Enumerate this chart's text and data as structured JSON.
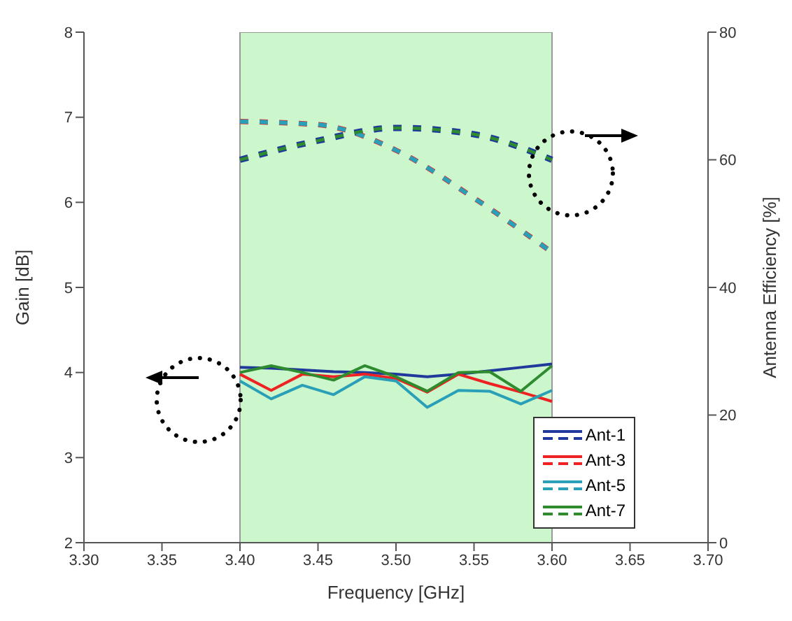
{
  "chart_data": {
    "type": "line",
    "xlabel": "Frequency [GHz]",
    "ylabel": "Gain [dB]",
    "y2label": "Antenna Efficiency [%]",
    "xlim": [
      3.3,
      3.7
    ],
    "xticks": [
      {
        "value": 3.3,
        "label": "3.30"
      },
      {
        "value": 3.35,
        "label": "3.35"
      },
      {
        "value": 3.4,
        "label": "3.40"
      },
      {
        "value": 3.45,
        "label": "3.45"
      },
      {
        "value": 3.5,
        "label": "3.50"
      },
      {
        "value": 3.55,
        "label": "3.55"
      },
      {
        "value": 3.6,
        "label": "3.60"
      },
      {
        "value": 3.65,
        "label": "3.65"
      },
      {
        "value": 3.7,
        "label": "3.70"
      }
    ],
    "ylim": [
      2,
      8
    ],
    "yticks": [
      2,
      3,
      4,
      5,
      6,
      7,
      8
    ],
    "y2lim": [
      0,
      80
    ],
    "y2ticks": [
      0,
      20,
      40,
      60,
      80
    ],
    "grid": false,
    "legend": "bottom right",
    "marker": "none",
    "bands": [
      {
        "axis": "x",
        "from": 3.4,
        "to": 3.6,
        "color": "#ccf7cc"
      }
    ],
    "series": [
      {
        "name": "Ant-1",
        "color": "#1f3a9a",
        "line_style": "solid",
        "x": [
          3.4,
          3.42,
          3.44,
          3.46,
          3.48,
          3.5,
          3.52,
          3.54,
          3.56,
          3.58,
          3.6
        ],
        "values": [
          4.06,
          4.05,
          4.03,
          4.01,
          4.0,
          3.98,
          3.95,
          3.98,
          4.02,
          4.06,
          4.1
        ]
      },
      {
        "name": "Ant-3",
        "color": "#ee2222",
        "line_style": "solid",
        "x": [
          3.4,
          3.42,
          3.44,
          3.46,
          3.48,
          3.5,
          3.52,
          3.54,
          3.56,
          3.58,
          3.6
        ],
        "values": [
          3.98,
          3.79,
          3.98,
          3.95,
          3.98,
          3.93,
          3.77,
          3.98,
          3.87,
          3.77,
          3.66
        ]
      },
      {
        "name": "Ant-5",
        "color": "#2aa0b8",
        "line_style": "solid",
        "x": [
          3.4,
          3.42,
          3.44,
          3.46,
          3.48,
          3.5,
          3.52,
          3.54,
          3.56,
          3.58,
          3.6
        ],
        "values": [
          3.9,
          3.69,
          3.85,
          3.74,
          3.95,
          3.9,
          3.59,
          3.79,
          3.78,
          3.63,
          3.79
        ]
      },
      {
        "name": "Ant-7",
        "color": "#2e8b2e",
        "line_style": "solid",
        "x": [
          3.4,
          3.42,
          3.44,
          3.46,
          3.48,
          3.5,
          3.52,
          3.54,
          3.56,
          3.58,
          3.6
        ],
        "values": [
          4.0,
          4.08,
          4.0,
          3.91,
          4.08,
          3.95,
          3.78,
          4.0,
          4.01,
          3.78,
          4.08
        ]
      },
      {
        "color": "#1f3a9a",
        "line_style": "dashed",
        "axis": "y2",
        "x": [
          3.4,
          3.45,
          3.5,
          3.55,
          3.6
        ],
        "values": [
          60,
          63,
          65,
          64,
          60
        ]
      },
      {
        "color": "#ee2222",
        "line_style": "dashed",
        "axis": "y2",
        "x": [
          3.4,
          3.45,
          3.5,
          3.55,
          3.6
        ],
        "values": [
          66,
          65.5,
          61.5,
          54,
          45.5
        ]
      },
      {
        "color": "#2aa0b8",
        "line_style": "dashed",
        "axis": "y2",
        "x": [
          3.4,
          3.45,
          3.5,
          3.55,
          3.6
        ],
        "values": [
          66,
          65.5,
          61.5,
          54,
          45.5
        ]
      },
      {
        "color": "#2e8b2e",
        "line_style": "dashed",
        "axis": "y2",
        "x": [
          3.4,
          3.45,
          3.5,
          3.55,
          3.6
        ],
        "values": [
          60,
          63,
          65,
          64,
          60
        ]
      }
    ]
  }
}
